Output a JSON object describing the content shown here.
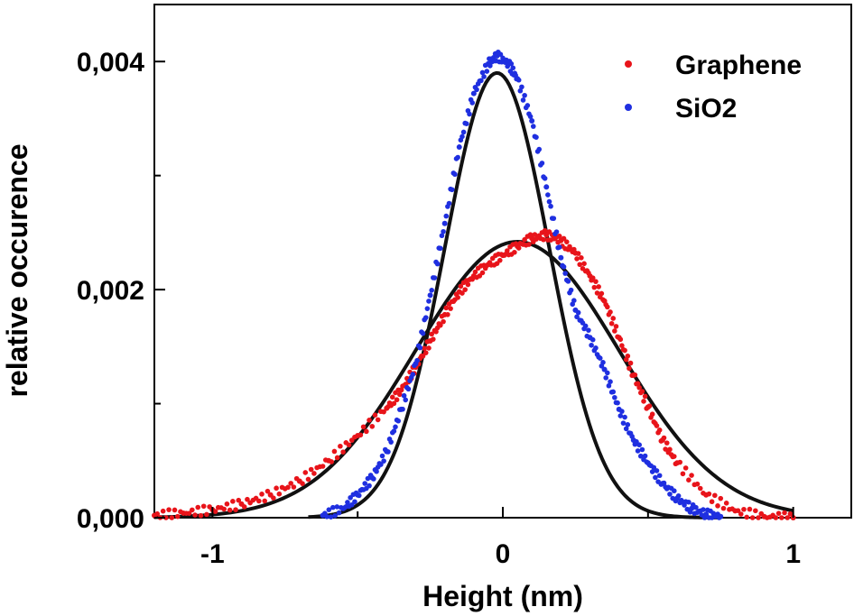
{
  "chart_data": {
    "type": "scatter",
    "title": "",
    "xlabel": "Height (nm)",
    "ylabel": "relative occurence",
    "xlim": [
      -1.2,
      1.2
    ],
    "ylim": [
      0,
      0.0045
    ],
    "grid": false,
    "legend_position": "top-right",
    "x_ticks": [
      {
        "value": -1,
        "label": "-1"
      },
      {
        "value": 0,
        "label": "0"
      },
      {
        "value": 1,
        "label": "1"
      }
    ],
    "x_minor_ticks": [
      -0.5,
      0.5
    ],
    "y_ticks": [
      {
        "value": 0,
        "label": "0,000"
      },
      {
        "value": 0.002,
        "label": "0,002"
      },
      {
        "value": 0.004,
        "label": "0,004"
      }
    ],
    "y_minor_ticks": [
      0.001,
      0.003
    ],
    "series": [
      {
        "name": "Graphene",
        "color": "#e8141a",
        "marker": "dot",
        "gaussian_fit": {
          "center": 0.05,
          "amplitude": 0.00242,
          "sigma": 0.35,
          "x_range": [
            -1.2,
            1.0
          ]
        },
        "x": [
          -1.2,
          -1.1,
          -1.0,
          -0.9,
          -0.8,
          -0.7,
          -0.6,
          -0.5,
          -0.4,
          -0.35,
          -0.3,
          -0.25,
          -0.2,
          -0.15,
          -0.1,
          -0.05,
          0.0,
          0.05,
          0.1,
          0.15,
          0.2,
          0.25,
          0.3,
          0.35,
          0.4,
          0.45,
          0.5,
          0.55,
          0.6,
          0.7,
          0.8,
          0.9,
          1.0
        ],
        "y": [
          2e-05,
          4e-05,
          7e-05,
          0.00012,
          0.0002,
          0.00032,
          0.0005,
          0.00072,
          0.00096,
          0.00112,
          0.00132,
          0.00155,
          0.00178,
          0.00198,
          0.00212,
          0.00222,
          0.0023,
          0.00238,
          0.00245,
          0.00248,
          0.00243,
          0.00232,
          0.00212,
          0.0019,
          0.00158,
          0.00125,
          0.00097,
          0.00068,
          0.00048,
          0.0002,
          6e-05,
          1e-05,
          0.0
        ]
      },
      {
        "name": "SiO2",
        "color": "#1f2fe0",
        "marker": "dot",
        "gaussian_fit": {
          "center": -0.02,
          "amplitude": 0.0039,
          "sigma": 0.18,
          "x_range": [
            -0.67,
            0.75
          ]
        },
        "x": [
          -0.62,
          -0.55,
          -0.5,
          -0.45,
          -0.4,
          -0.35,
          -0.3,
          -0.25,
          -0.2,
          -0.15,
          -0.1,
          -0.05,
          -0.02,
          0.02,
          0.05,
          0.1,
          0.15,
          0.2,
          0.25,
          0.3,
          0.35,
          0.4,
          0.45,
          0.5,
          0.55,
          0.6,
          0.65,
          0.7,
          0.75
        ],
        "y": [
          2e-05,
          8e-05,
          0.0002,
          0.00035,
          0.00058,
          0.00095,
          0.00135,
          0.00195,
          0.00258,
          0.00325,
          0.00372,
          0.00398,
          0.00405,
          0.00398,
          0.00385,
          0.00348,
          0.0029,
          0.00228,
          0.00182,
          0.00158,
          0.0013,
          0.00095,
          0.00068,
          0.00048,
          0.0003,
          0.00017,
          8e-05,
          3e-05,
          1e-05
        ]
      }
    ]
  }
}
